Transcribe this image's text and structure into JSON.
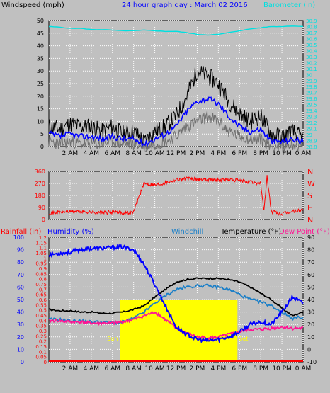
{
  "title": "24 hour graph day : March 02 2016",
  "colors": {
    "background": "#c0c0c0",
    "plot": "#c0c0c0",
    "grid": "#ffffff",
    "windspeed_gust": "#000000",
    "windspeed_avg": "#0000ff",
    "windspeed_min": "#707070",
    "barometer": "#00e0e0",
    "direction": "#ff0000",
    "rain": "#ff0000",
    "humidity": "#0000ff",
    "windchill": "#1a7fc8",
    "temperature": "#000000",
    "dewpoint": "#ff1493",
    "sun": "#ffff00",
    "sunrise_text": "#ffff00"
  },
  "x_ticks": [
    "2 AM",
    "4 AM",
    "6 AM",
    "8 AM",
    "10 AM",
    "12 PM",
    "2 PM",
    "4 PM",
    "6 PM",
    "8 PM",
    "10 PM",
    "0 AM"
  ],
  "chart_data": [
    {
      "type": "line",
      "panel": "wind-baro",
      "ylabel_left": "Windspeed (mph)",
      "ylabel_right": "Barometer (in)",
      "ylim_left": [
        0,
        50
      ],
      "ylim_right": [
        28.8,
        30.9
      ],
      "yticks_left": [
        "0",
        "5",
        "10",
        "15",
        "20",
        "25",
        "30",
        "35",
        "40",
        "45",
        "50"
      ],
      "yticks_right": [
        "28.8",
        "28.9",
        "29",
        "29.1",
        "29.2",
        "29.3",
        "29.4",
        "29.5",
        "29.6",
        "29.7",
        "29.8",
        "29.9",
        "30",
        "30.1",
        "30.2",
        "30.3",
        "30.4",
        "30.5",
        "30.6",
        "30.7",
        "30.8",
        "30.9"
      ],
      "x_hours": [
        0,
        1,
        2,
        3,
        4,
        5,
        6,
        7,
        8,
        9,
        10,
        11,
        12,
        13,
        14,
        15,
        16,
        17,
        18,
        19,
        20,
        21,
        22,
        23,
        24
      ],
      "series": [
        {
          "key": "gust",
          "values": [
            8,
            7,
            9,
            8,
            8,
            6,
            8,
            5,
            6,
            2,
            6,
            8,
            12,
            20,
            30,
            28,
            25,
            18,
            13,
            10,
            12,
            5,
            4,
            6,
            3
          ]
        },
        {
          "key": "avg",
          "values": [
            5,
            4,
            5,
            4,
            4,
            3,
            4,
            3,
            3,
            1,
            3,
            5,
            8,
            14,
            18,
            19,
            17,
            12,
            8,
            6,
            7,
            2,
            2,
            3,
            2
          ]
        },
        {
          "key": "min",
          "values": [
            2,
            1,
            2,
            1,
            1,
            1,
            2,
            1,
            1,
            0,
            1,
            2,
            4,
            8,
            10,
            12,
            10,
            6,
            4,
            3,
            3,
            0,
            0,
            1,
            0
          ]
        },
        {
          "key": "barometer",
          "values": [
            30.8,
            30.79,
            30.77,
            30.77,
            30.75,
            30.75,
            30.74,
            30.73,
            30.73,
            30.74,
            30.73,
            30.72,
            30.72,
            30.7,
            30.67,
            30.66,
            30.67,
            30.7,
            30.73,
            30.76,
            30.78,
            30.8,
            30.8,
            30.81,
            30.8
          ]
        }
      ]
    },
    {
      "type": "scatter",
      "panel": "wind-direction",
      "ylim": [
        0,
        360
      ],
      "yticks": [
        "0",
        "90",
        "180",
        "270",
        "360"
      ],
      "compass_labels": [
        "N",
        "W",
        "S",
        "E",
        "N"
      ],
      "x_hours": [
        0,
        1,
        2,
        3,
        4,
        5,
        6,
        7,
        8,
        8.4,
        9,
        10,
        11,
        12,
        13,
        14,
        15,
        16,
        17,
        18,
        19,
        20,
        20.3,
        20.6,
        21,
        22,
        23,
        24
      ],
      "series": [
        {
          "key": "direction",
          "values": [
            50,
            55,
            60,
            60,
            55,
            50,
            55,
            50,
            55,
            150,
            270,
            260,
            275,
            300,
            305,
            300,
            300,
            295,
            300,
            290,
            280,
            270,
            60,
            320,
            60,
            40,
            60,
            70
          ]
        }
      ]
    },
    {
      "type": "line",
      "panel": "temp-humidity",
      "ylabel_rain": "Rainfall (in)",
      "ylabel_humidity": "Humidity (%)",
      "label_windchill": "Windchill",
      "ylabel_temperature": "Temperature (°F)",
      "label_dewpoint": "Dew Point (°F)",
      "ylim_humidity": [
        0,
        100
      ],
      "ylim_rain": [
        0,
        1.2
      ],
      "ylim_temp": [
        -10,
        90
      ],
      "yticks_humidity": [
        "0",
        "10",
        "20",
        "30",
        "40",
        "50",
        "60",
        "70",
        "80",
        "90",
        "100"
      ],
      "yticks_rain": [
        "0",
        "0.05",
        "0.1",
        "0.15",
        "0.2",
        "0.25",
        "0.3",
        "0.35",
        "0.4",
        "0.45",
        "0.5",
        "0.55",
        "0.6",
        "0.65",
        "0.7",
        "0.75",
        "0.8",
        "0.85",
        "0.9",
        "0.95",
        "1",
        "1.05",
        "1.1",
        "1.15",
        "1.2"
      ],
      "yticks_temp": [
        "-10",
        "0",
        "10",
        "20",
        "30",
        "40",
        "50",
        "60",
        "70",
        "80",
        "90"
      ],
      "sunrise_label": "Sun Rise",
      "sunset_label": "Set",
      "sunrise_hour": 6.7,
      "sunset_hour": 17.8,
      "x_hours": [
        0,
        1,
        2,
        3,
        4,
        5,
        6,
        7,
        8,
        9,
        10,
        11,
        12,
        13,
        14,
        15,
        16,
        17,
        18,
        19,
        20,
        21,
        22,
        23,
        24
      ],
      "series": [
        {
          "key": "temperature",
          "values": [
            32,
            31,
            31,
            30,
            30,
            29,
            29,
            30,
            32,
            35,
            42,
            48,
            54,
            56,
            57,
            57,
            57,
            56,
            54,
            50,
            45,
            40,
            33,
            27,
            30
          ]
        },
        {
          "key": "windchill",
          "values": [
            24,
            24,
            23,
            23,
            22,
            22,
            21,
            22,
            25,
            30,
            37,
            43,
            48,
            50,
            51,
            51,
            50,
            48,
            44,
            40,
            38,
            35,
            30,
            25,
            26
          ]
        },
        {
          "key": "dewpoint",
          "values": [
            23,
            23,
            22,
            22,
            21,
            21,
            21,
            22,
            24,
            27,
            30,
            24,
            17,
            13,
            10,
            9,
            10,
            12,
            14,
            16,
            16,
            17,
            18,
            17,
            17
          ]
        },
        {
          "key": "humidity",
          "values": [
            86,
            87,
            88,
            90,
            91,
            91,
            92,
            92,
            90,
            78,
            62,
            45,
            28,
            22,
            18,
            17,
            18,
            20,
            24,
            30,
            32,
            30,
            40,
            52,
            47
          ]
        }
      ]
    }
  ]
}
